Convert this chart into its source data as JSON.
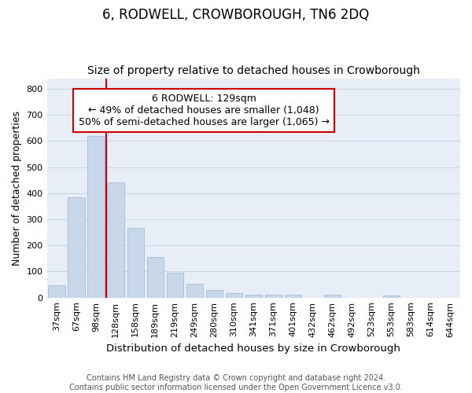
{
  "title": "6, RODWELL, CROWBOROUGH, TN6 2DQ",
  "subtitle": "Size of property relative to detached houses in Crowborough",
  "xlabel": "Distribution of detached houses by size in Crowborough",
  "ylabel": "Number of detached properties",
  "categories": [
    "37sqm",
    "67sqm",
    "98sqm",
    "128sqm",
    "158sqm",
    "189sqm",
    "219sqm",
    "249sqm",
    "280sqm",
    "310sqm",
    "341sqm",
    "371sqm",
    "401sqm",
    "432sqm",
    "462sqm",
    "492sqm",
    "523sqm",
    "553sqm",
    "583sqm",
    "614sqm",
    "644sqm"
  ],
  "values": [
    47,
    385,
    620,
    440,
    268,
    155,
    95,
    52,
    30,
    18,
    12,
    12,
    10,
    0,
    10,
    0,
    0,
    8,
    0,
    0,
    0
  ],
  "bar_color": "#c8d8ea",
  "bar_edge_color": "#9ab4cc",
  "annotation_line1": "6 RODWELL: 129sqm",
  "annotation_line2": "← 49% of detached houses are smaller (1,048)",
  "annotation_line3": "50% of semi-detached houses are larger (1,065) →",
  "annotation_box_facecolor": "#ffffff",
  "annotation_box_edgecolor": "#cc0000",
  "red_line_color": "#cc0000",
  "ylim": [
    0,
    840
  ],
  "yticks": [
    0,
    100,
    200,
    300,
    400,
    500,
    600,
    700,
    800
  ],
  "grid_color": "#c8d4e4",
  "background_color": "#e8eef8",
  "footer_line1": "Contains HM Land Registry data © Crown copyright and database right 2024.",
  "footer_line2": "Contains public sector information licensed under the Open Government Licence v3.0.",
  "title_fontsize": 12,
  "subtitle_fontsize": 10,
  "ylabel_fontsize": 9,
  "xlabel_fontsize": 9.5,
  "tick_fontsize": 8,
  "footer_fontsize": 7,
  "annot_fontsize": 9
}
